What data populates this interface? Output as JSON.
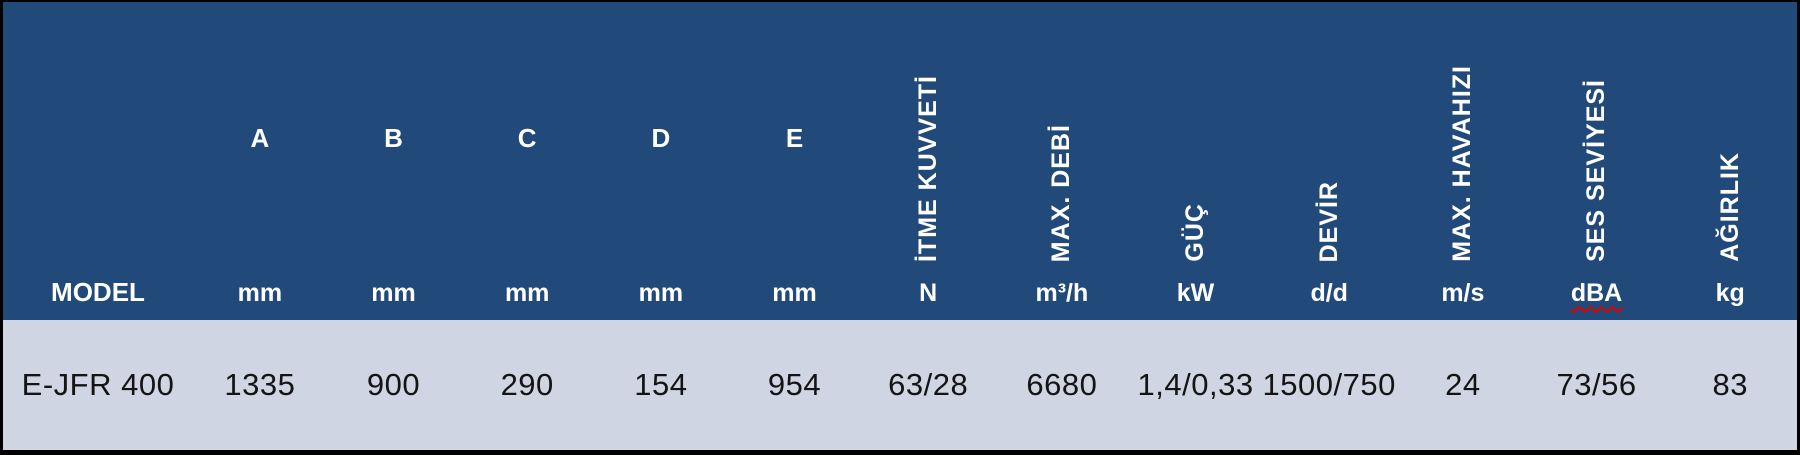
{
  "meta": {
    "description": "Turkish jet fan technical specification table, single product row",
    "header_bg": "#21497A",
    "header_text_color": "#FFFFFF",
    "row_bg": "#CFD5E3",
    "row_text_color": "#141414",
    "outer_border_color": "#000000",
    "spellcheck_underline_color": "#E00000"
  },
  "chart_data": {
    "type": "table",
    "title": "",
    "columns": [
      "MODEL",
      "A (mm)",
      "B (mm)",
      "C (mm)",
      "D (mm)",
      "E (mm)",
      "İTME KUVVETİ (N)",
      "MAX. DEBİ (m³/h)",
      "GÜÇ (kW)",
      "DEVİR (d/d)",
      "MAX. HAVAHIZI (m/s)",
      "SES SEVİYESİ (dBA)",
      "AĞIRLIK (kg)"
    ],
    "rows": [
      [
        "E-JFR 400",
        "1335",
        "900",
        "290",
        "154",
        "954",
        "63/28",
        "6680",
        "1,4/0,33",
        "1500/750",
        "24",
        "73/56",
        "83"
      ]
    ]
  },
  "columns": [
    {
      "label": "MODEL",
      "unit": "",
      "value": "E-JFR 400",
      "header_style": "model"
    },
    {
      "label": "A",
      "unit": "mm",
      "value": "1335",
      "header_style": "letter"
    },
    {
      "label": "B",
      "unit": "mm",
      "value": "900",
      "header_style": "letter"
    },
    {
      "label": "C",
      "unit": "mm",
      "value": "290",
      "header_style": "letter"
    },
    {
      "label": "D",
      "unit": "mm",
      "value": "154",
      "header_style": "letter"
    },
    {
      "label": "E",
      "unit": "mm",
      "value": "954",
      "header_style": "letter"
    },
    {
      "label": "İTME KUVVETİ",
      "unit": "N",
      "value": "63/28",
      "header_style": "vertical"
    },
    {
      "label": "MAX. DEBİ",
      "unit": "m³/h",
      "value": "6680",
      "header_style": "vertical"
    },
    {
      "label": "GÜÇ",
      "unit": "kW",
      "value": "1,4/0,33",
      "header_style": "vertical"
    },
    {
      "label": "DEVİR",
      "unit": "d/d",
      "value": "1500/750",
      "header_style": "vertical"
    },
    {
      "label": "MAX. HAVAHIZI",
      "unit": "m/s",
      "value": "24",
      "header_style": "vertical"
    },
    {
      "label": "SES SEVİYESİ",
      "unit": "dBA",
      "value": "73/56",
      "header_style": "vertical",
      "unit_spellcheck_underline": true
    },
    {
      "label": "AĞIRLIK",
      "unit": "kg",
      "value": "83",
      "header_style": "vertical"
    }
  ]
}
